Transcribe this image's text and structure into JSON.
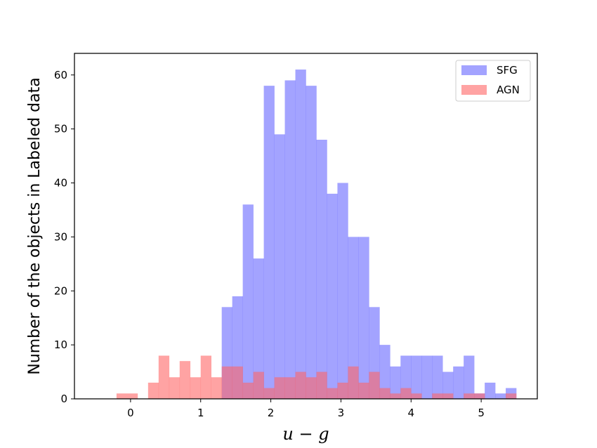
{
  "chart_data": {
    "type": "bar",
    "subtype": "overlaid-histogram",
    "xlabel": "u − g",
    "ylabel": "Number of the objects in Labeled data",
    "xlim": [
      -0.8,
      5.8
    ],
    "ylim": [
      0,
      64
    ],
    "xticks": [
      0,
      1,
      2,
      3,
      4,
      5
    ],
    "yticks": [
      0,
      10,
      20,
      30,
      40,
      50,
      60
    ],
    "grid": false,
    "legend_position": "top-right",
    "series": [
      {
        "name": "SFG",
        "color": "#6666ff",
        "bins": [
          [
            1.3,
            1.45,
            17
          ],
          [
            1.45,
            1.6,
            19
          ],
          [
            1.6,
            1.75,
            36
          ],
          [
            1.75,
            1.9,
            26
          ],
          [
            1.9,
            2.05,
            58
          ],
          [
            2.05,
            2.2,
            49
          ],
          [
            2.2,
            2.35,
            59
          ],
          [
            2.35,
            2.5,
            61
          ],
          [
            2.5,
            2.65,
            58
          ],
          [
            2.65,
            2.8,
            48
          ],
          [
            2.8,
            2.95,
            38
          ],
          [
            2.95,
            3.1,
            40
          ],
          [
            3.1,
            3.25,
            30
          ],
          [
            3.25,
            3.4,
            30
          ],
          [
            3.4,
            3.55,
            17
          ],
          [
            3.55,
            3.7,
            10
          ],
          [
            3.7,
            3.85,
            6
          ],
          [
            3.85,
            4.0,
            8
          ],
          [
            4.0,
            4.15,
            8
          ],
          [
            4.15,
            4.3,
            8
          ],
          [
            4.3,
            4.45,
            8
          ],
          [
            4.45,
            4.6,
            5
          ],
          [
            4.6,
            4.75,
            6
          ],
          [
            4.75,
            4.9,
            8
          ],
          [
            4.9,
            5.05,
            1
          ],
          [
            5.05,
            5.2,
            3
          ],
          [
            5.2,
            5.35,
            1
          ],
          [
            5.35,
            5.5,
            2
          ]
        ]
      },
      {
        "name": "AGN",
        "color": "#ff6666",
        "bins": [
          [
            -0.2,
            0.1,
            1
          ],
          [
            0.25,
            0.4,
            3
          ],
          [
            0.4,
            0.55,
            8
          ],
          [
            0.55,
            0.7,
            4
          ],
          [
            0.7,
            0.85,
            7
          ],
          [
            0.85,
            1.0,
            4
          ],
          [
            1.0,
            1.15,
            8
          ],
          [
            1.15,
            1.3,
            4
          ],
          [
            1.3,
            1.45,
            6
          ],
          [
            1.45,
            1.6,
            6
          ],
          [
            1.6,
            1.75,
            3
          ],
          [
            1.75,
            1.9,
            5
          ],
          [
            1.9,
            2.05,
            2
          ],
          [
            2.05,
            2.2,
            4
          ],
          [
            2.2,
            2.35,
            4
          ],
          [
            2.35,
            2.5,
            5
          ],
          [
            2.5,
            2.65,
            4
          ],
          [
            2.65,
            2.8,
            5
          ],
          [
            2.8,
            2.95,
            2
          ],
          [
            2.95,
            3.1,
            3
          ],
          [
            3.1,
            3.25,
            6
          ],
          [
            3.25,
            3.4,
            3
          ],
          [
            3.4,
            3.55,
            5
          ],
          [
            3.55,
            3.7,
            2
          ],
          [
            3.7,
            3.85,
            1
          ],
          [
            3.85,
            4.0,
            2
          ],
          [
            4.0,
            4.15,
            1
          ],
          [
            4.3,
            4.45,
            1
          ],
          [
            4.45,
            4.6,
            1
          ],
          [
            4.75,
            4.9,
            1
          ],
          [
            4.9,
            5.05,
            1
          ],
          [
            5.35,
            5.5,
            1
          ]
        ]
      }
    ]
  }
}
